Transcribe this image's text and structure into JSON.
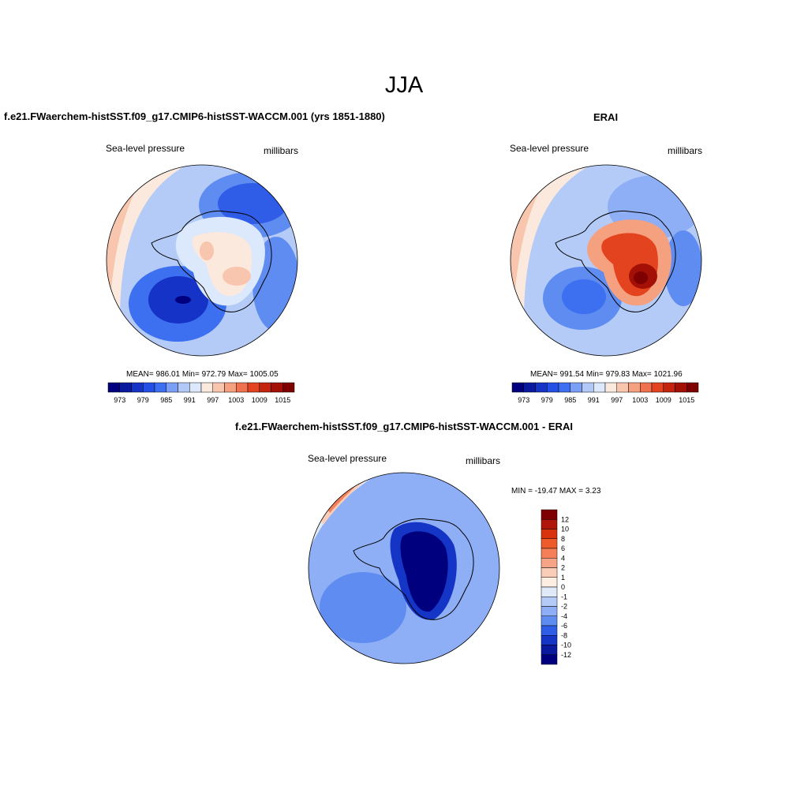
{
  "figure": {
    "title": "JJA",
    "panels": {
      "model": {
        "title": "f.e21.FWaerchem-histSST.f09_g17.CMIP6-histSST-WACCM.001 (yrs 1851-1880)",
        "variable": "Sea-level pressure",
        "units": "millibars",
        "stats": "MEAN= 986.01  Min= 972.79  Max= 1005.05"
      },
      "obs": {
        "title": "ERAI",
        "variable": "Sea-level pressure",
        "units": "millibars",
        "stats": "MEAN= 991.54  Min= 979.83  Max= 1021.96"
      },
      "diff": {
        "title": "f.e21.FWaerchem-histSST.f09_g17.CMIP6-histSST-WACCM.001 - ERAI",
        "variable": "Sea-level pressure",
        "units": "millibars",
        "stats": "MIN = -19.47 MAX =   3.23"
      }
    },
    "colorbar_abs": {
      "tick_labels": [
        "973",
        "979",
        "985",
        "991",
        "997",
        "1003",
        "1009",
        "1015"
      ],
      "colors": [
        "#00007f",
        "#0a1a9f",
        "#1533c6",
        "#2250e6",
        "#3d6ff1",
        "#7a9ff5",
        "#b2c9f8",
        "#dce8fb",
        "#fbe9dd",
        "#f8c6ae",
        "#f5a07f",
        "#f0714f",
        "#e4431f",
        "#c4240e",
        "#a31006",
        "#7f0000"
      ]
    },
    "colorbar_diff": {
      "tick_labels": [
        "12",
        "10",
        "8",
        "6",
        "4",
        "2",
        "1",
        "0",
        "-1",
        "-2",
        "-4",
        "-6",
        "-8",
        "-10",
        "-12"
      ],
      "colors": [
        "#7f0000",
        "#b0160a",
        "#d9320f",
        "#ee5a2c",
        "#f47f58",
        "#f5a485",
        "#f9cdb8",
        "#fdeee3",
        "#dfe9f8",
        "#b4cbf7",
        "#8eaef5",
        "#5f8cf1",
        "#2f5de8",
        "#1535c6",
        "#0a1a9f",
        "#00007f"
      ]
    }
  },
  "chart_data": [
    {
      "type": "heatmap",
      "title": "f.e21.FWaerchem-histSST.f09_g17.CMIP6-histSST-WACCM.001 (yrs 1851-1880)",
      "variable": "Sea-level pressure",
      "units": "millibars",
      "projection": "south-polar stereographic",
      "mean": 986.01,
      "min": 972.79,
      "max": 1005.05,
      "levels": [
        973,
        976,
        979,
        982,
        985,
        988,
        991,
        994,
        997,
        1000,
        1003,
        1006,
        1009,
        1012,
        1015
      ]
    },
    {
      "type": "heatmap",
      "title": "ERAI",
      "variable": "Sea-level pressure",
      "units": "millibars",
      "projection": "south-polar stereographic",
      "mean": 991.54,
      "min": 979.83,
      "max": 1021.96,
      "levels": [
        973,
        976,
        979,
        982,
        985,
        988,
        991,
        994,
        997,
        1000,
        1003,
        1006,
        1009,
        1012,
        1015
      ]
    },
    {
      "type": "heatmap",
      "title": "f.e21.FWaerchem-histSST.f09_g17.CMIP6-histSST-WACCM.001 - ERAI",
      "variable": "Sea-level pressure",
      "units": "millibars",
      "projection": "south-polar stereographic",
      "min": -19.47,
      "max": 3.23,
      "levels": [
        -12,
        -10,
        -8,
        -6,
        -4,
        -2,
        -1,
        0,
        1,
        2,
        4,
        6,
        8,
        10,
        12
      ]
    }
  ]
}
